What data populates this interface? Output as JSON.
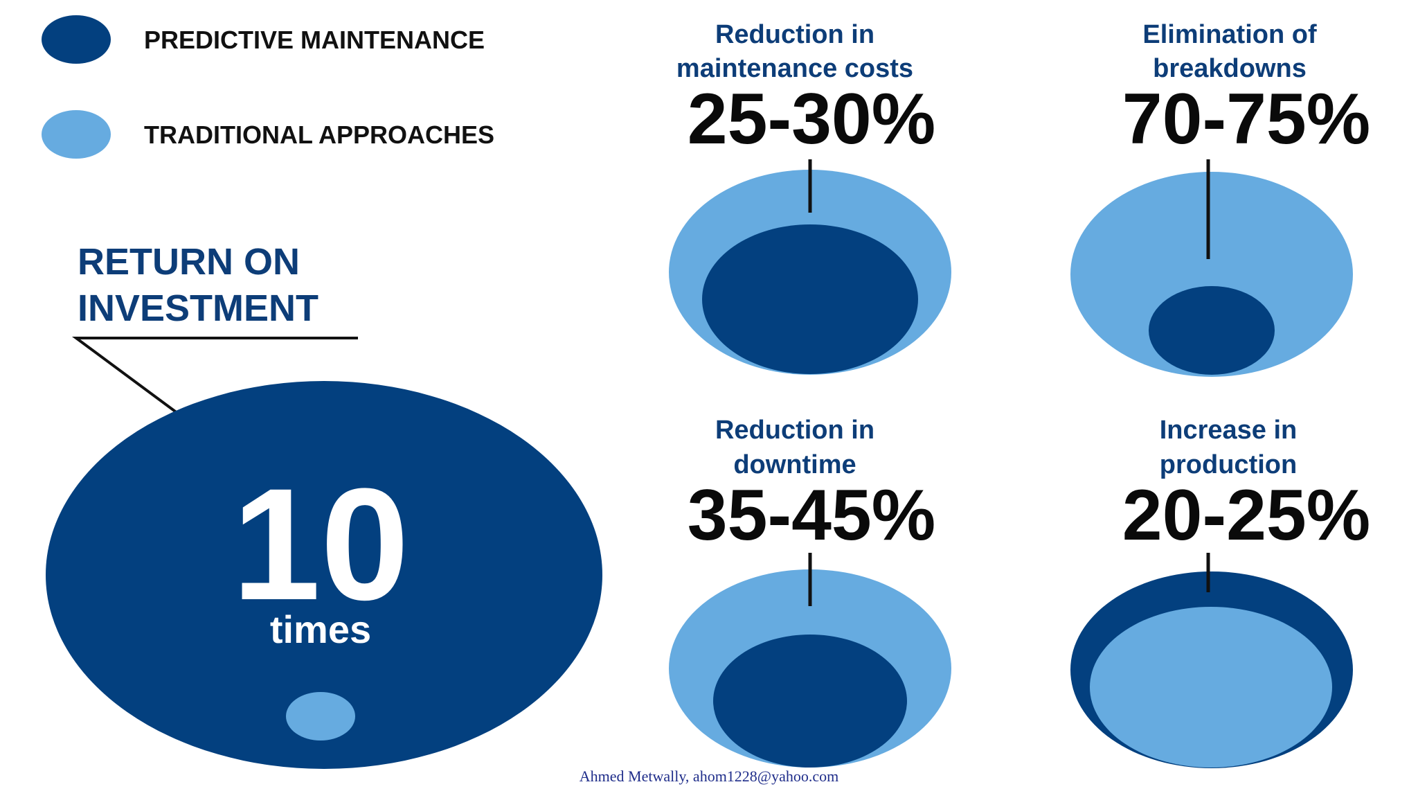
{
  "chart_data": {
    "type": "proportional-circle-infographic",
    "colors": {
      "predictive": "#03407f",
      "traditional": "#66abe0",
      "title_blue": "#0d3d78",
      "value_text": "#0a0a0a",
      "white": "#ffffff"
    },
    "legend": [
      {
        "key": "predictive",
        "label": "PREDICTIVE MAINTENANCE"
      },
      {
        "key": "traditional",
        "label": "TRADITIONAL APPROACHES"
      }
    ],
    "roi": {
      "title_lines": [
        "RETURN ON",
        "INVESTMENT"
      ],
      "value": "10",
      "unit": "times",
      "multiple": 10
    },
    "metrics": [
      {
        "id": "maintenance-costs",
        "title_lines": [
          "Reduction in",
          "maintenance costs"
        ],
        "value_label": "25-30%",
        "range": [
          25,
          30
        ],
        "inner": "predictive",
        "outer": "traditional",
        "inner_ratio": 0.72
      },
      {
        "id": "breakdowns",
        "title_lines": [
          "Elimination of",
          "breakdowns"
        ],
        "value_label": "70-75%",
        "range": [
          70,
          75
        ],
        "inner": "predictive",
        "outer": "traditional",
        "inner_ratio": 0.43
      },
      {
        "id": "downtime",
        "title_lines": [
          "Reduction in",
          "downtime"
        ],
        "value_label": "35-45%",
        "range": [
          35,
          45
        ],
        "inner": "predictive",
        "outer": "traditional",
        "inner_ratio": 0.6
      },
      {
        "id": "production",
        "title_lines": [
          "Increase in",
          "production"
        ],
        "value_label": "20-25%",
        "range": [
          20,
          25
        ],
        "inner": "traditional",
        "outer": "predictive",
        "inner_ratio": 0.82
      }
    ]
  },
  "footer": {
    "credit": "Ahmed Metwally, ahom1228@yahoo.com"
  }
}
